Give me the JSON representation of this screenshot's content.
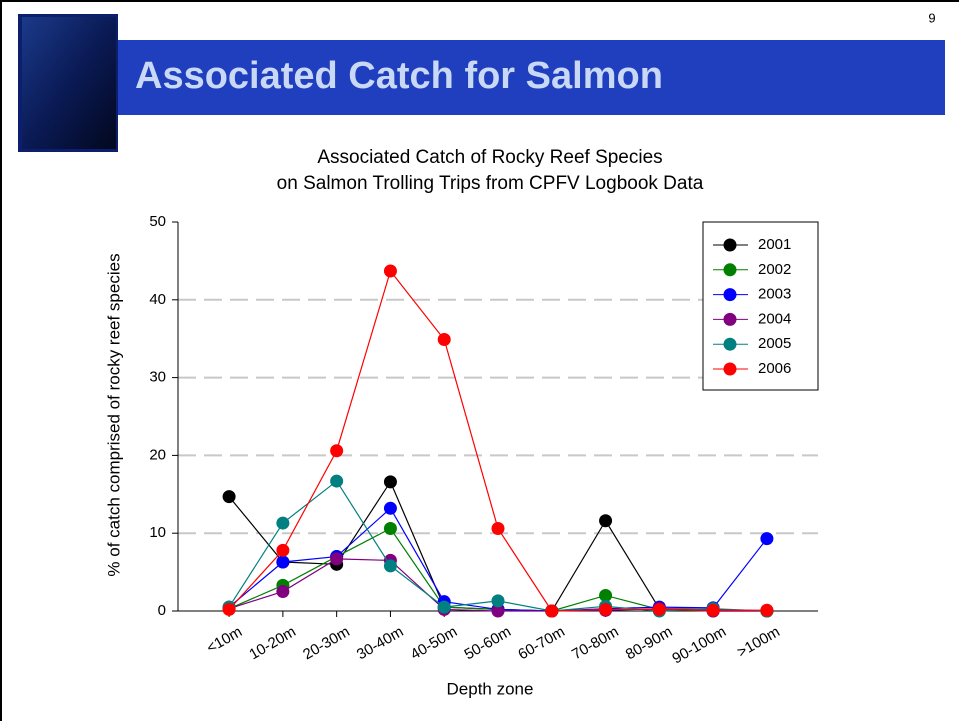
{
  "slide": {
    "title": "Associated Catch for Salmon",
    "page_number": "9"
  },
  "chart_data": {
    "type": "line",
    "title": [
      "Associated Catch of Rocky Reef Species",
      "on Salmon Trolling Trips from CPFV Logbook Data"
    ],
    "x_label": "Depth zone",
    "y_label": "% of catch comprised of rocky reef species",
    "categories": [
      "<10m",
      "10-20m",
      "20-30m",
      "30-40m",
      "40-50m",
      "50-60m",
      "60-70m",
      "70-80m",
      "80-90m",
      "90-100m",
      ">100m"
    ],
    "series": [
      {
        "name": "2001",
        "color": "#000000",
        "values": [
          14.7,
          6.3,
          6.0,
          16.6,
          0.5,
          0.2,
          0,
          11.6,
          0.3,
          0.2,
          0
        ]
      },
      {
        "name": "2002",
        "color": "#008000",
        "values": [
          0.3,
          3.3,
          7.0,
          10.6,
          0.5,
          0.2,
          0,
          2.0,
          0.2,
          0,
          0
        ]
      },
      {
        "name": "2003",
        "color": "#0000ff",
        "values": [
          0.5,
          6.3,
          7.0,
          13.2,
          1.2,
          0.2,
          0,
          0.3,
          0.5,
          0.4,
          9.3
        ]
      },
      {
        "name": "2004",
        "color": "#800080",
        "values": [
          0.3,
          2.5,
          6.7,
          6.5,
          0.2,
          0,
          0,
          0.1,
          0.3,
          0,
          0
        ]
      },
      {
        "name": "2005",
        "color": "#008080",
        "values": [
          0.5,
          11.3,
          16.7,
          5.8,
          0.5,
          1.3,
          0,
          0.6,
          0,
          0.3,
          0
        ]
      },
      {
        "name": "2006",
        "color": "#ff0000",
        "values": [
          0.2,
          7.8,
          20.6,
          43.7,
          34.9,
          10.6,
          0,
          0.2,
          0.2,
          0.1,
          0.1
        ]
      }
    ],
    "ylim": [
      0,
      50
    ],
    "yticks": [
      0,
      10,
      20,
      30,
      40,
      50
    ],
    "grid": true,
    "legend": "upper-right"
  }
}
